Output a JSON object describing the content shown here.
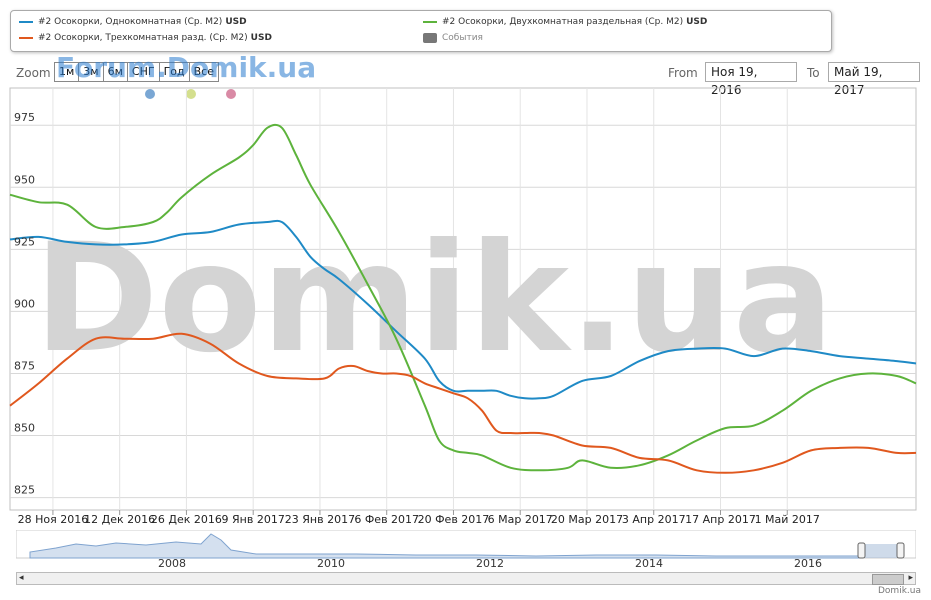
{
  "legend": {
    "items": [
      {
        "label": "#2 Осокорки, Однокомнатная (Ср. М2)",
        "currency": "USD",
        "color": "#1f8ac6"
      },
      {
        "label": "#2 Осокорки, Двухкомнатная раздельная (Ср. М2)",
        "currency": "USD",
        "color": "#5db33c"
      },
      {
        "label": "#2 Осокорки, Трехкомнатная разд. (Ср. М2)",
        "currency": "USD",
        "color": "#e0581e"
      }
    ],
    "events_label": "События",
    "events_color": "#777777"
  },
  "zoom": {
    "label": "Zoom",
    "buttons": [
      "1м",
      "3м",
      "6м",
      "СНГ",
      "Год",
      "Все"
    ]
  },
  "watermark_top": "Forum.Domik.ua",
  "watermark_big": "Domik.ua",
  "range": {
    "from_label": "From",
    "from_value": "Ноя 19, 2016",
    "to_label": "To",
    "to_value": "Май 19, 2017"
  },
  "navigator": {
    "years": [
      "2008",
      "2010",
      "2012",
      "2014",
      "2016"
    ]
  },
  "credit": "Domik.ua",
  "chart_data": {
    "type": "line",
    "title": "",
    "xlabel": "",
    "ylabel": "",
    "ylim": [
      820,
      990
    ],
    "yticks": [
      825,
      850,
      875,
      900,
      925,
      950,
      975
    ],
    "xlim": [
      -9,
      181
    ],
    "xticks": [
      {
        "label": "28 Ноя 2016",
        "x": 0
      },
      {
        "label": "12 Дек 2016",
        "x": 14
      },
      {
        "label": "26 Дек 2016",
        "x": 28
      },
      {
        "label": "9 Янв 2017",
        "x": 42
      },
      {
        "label": "23 Янв 2017",
        "x": 56
      },
      {
        "label": "6 Фев 2017",
        "x": 70
      },
      {
        "label": "20 Фев 2017",
        "x": 84
      },
      {
        "label": "6 Мар 2017",
        "x": 98
      },
      {
        "label": "20 Мар 2017",
        "x": 112
      },
      {
        "label": "3 Апр 2017",
        "x": 126
      },
      {
        "label": "17 Апр 2017",
        "x": 140
      },
      {
        "label": "1 Май 2017",
        "x": 154
      }
    ],
    "grid": true,
    "series": [
      {
        "name": "#2 Осокорки, Однокомнатная (Ср. М2)",
        "color": "#1f8ac6",
        "x": [
          -9,
          -3,
          3,
          9,
          15,
          21,
          27,
          33,
          39,
          45,
          48,
          51,
          54,
          57,
          60,
          66,
          72,
          78,
          81,
          84,
          87,
          90,
          93,
          96,
          99,
          102,
          105,
          111,
          117,
          123,
          129,
          135,
          141,
          147,
          153,
          159,
          165,
          171,
          177,
          181
        ],
        "y": [
          929,
          930,
          928,
          927,
          927,
          928,
          931,
          932,
          935,
          936,
          936,
          930,
          922,
          917,
          913,
          903,
          892,
          881,
          872,
          868,
          868,
          868,
          868,
          866,
          865,
          865,
          866,
          872,
          874,
          880,
          884,
          885,
          885,
          882,
          885,
          884,
          882,
          881,
          880,
          879
        ]
      },
      {
        "name": "#2 Осокорки, Двухкомнатная раздельная (Ср. М2)",
        "color": "#5db33c",
        "x": [
          -9,
          -3,
          3,
          9,
          15,
          21,
          24,
          27,
          33,
          39,
          42,
          45,
          48,
          51,
          54,
          60,
          66,
          72,
          78,
          81,
          84,
          87,
          90,
          96,
          102,
          108,
          111,
          117,
          123,
          129,
          135,
          141,
          147,
          153,
          159,
          165,
          171,
          177,
          181
        ],
        "y": [
          947,
          944,
          943,
          934,
          934,
          936,
          940,
          946,
          955,
          962,
          967,
          974,
          974,
          963,
          951,
          932,
          911,
          889,
          862,
          848,
          844,
          843,
          842,
          837,
          836,
          837,
          840,
          837,
          838,
          842,
          848,
          853,
          854,
          860,
          868,
          873,
          875,
          874,
          871
        ]
      },
      {
        "name": "#2 Осокорки, Трехкомнатная разд. (Ср. М2)",
        "color": "#e0581e",
        "x": [
          -9,
          -3,
          3,
          9,
          15,
          21,
          27,
          33,
          39,
          45,
          51,
          57,
          60,
          63,
          66,
          69,
          72,
          75,
          78,
          81,
          84,
          87,
          90,
          93,
          96,
          99,
          102,
          105,
          111,
          117,
          123,
          129,
          135,
          141,
          147,
          153,
          159,
          165,
          171,
          177,
          181
        ],
        "y": [
          862,
          871,
          881,
          889,
          889,
          889,
          891,
          887,
          879,
          874,
          873,
          873,
          877,
          878,
          876,
          875,
          875,
          874,
          871,
          869,
          867,
          865,
          860,
          852,
          851,
          851,
          851,
          850,
          846,
          845,
          841,
          840,
          836,
          835,
          836,
          839,
          844,
          845,
          845,
          843,
          843
        ]
      }
    ]
  }
}
